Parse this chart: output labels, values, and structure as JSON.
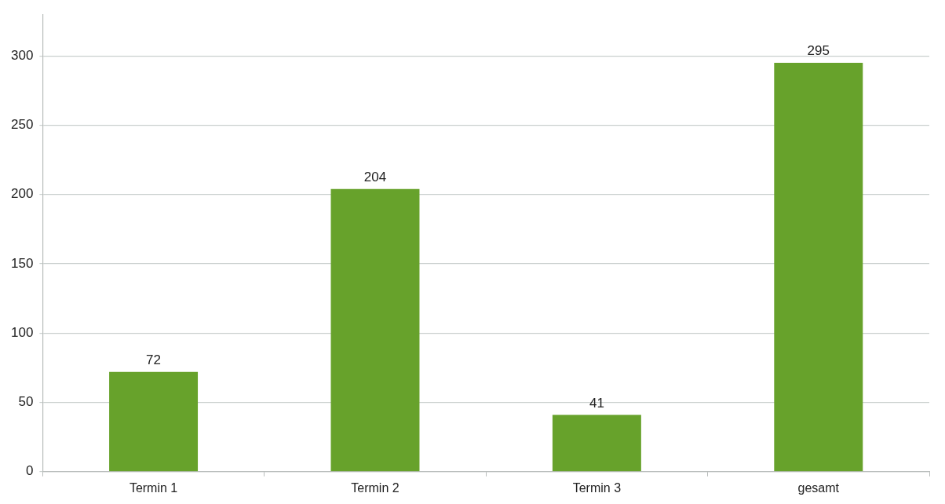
{
  "chart_data": {
    "type": "bar",
    "categories": [
      "Termin 1",
      "Termin 2",
      "Termin 3",
      "gesamt"
    ],
    "values": [
      72,
      204,
      41,
      295
    ],
    "color": "#67a22b",
    "ylim": [
      0,
      330
    ],
    "yticks": [
      0,
      50,
      100,
      150,
      200,
      250,
      300
    ],
    "grid": "y",
    "data_labels": true
  }
}
